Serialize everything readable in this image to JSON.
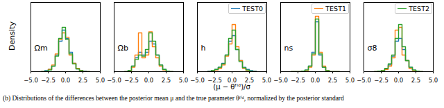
{
  "caption": "(b) Distributions of the differences between the posterior mean μ and the true parameter θᶠⁱᵈ, normalized by the posterior standard",
  "ylabel": "Density",
  "xlabel": "(μ − θᶠⁱᵈ)/σ",
  "legend": "upper right",
  "chart_data": [
    {
      "type": "histogram",
      "title": "Ωm",
      "xlim": [
        -5,
        5
      ],
      "xticks": [
        {
          "value": -5,
          "label": "−5.0"
        },
        {
          "value": -2.5,
          "label": "−2.5"
        },
        {
          "value": 0,
          "label": "0.0"
        },
        {
          "value": 2.5,
          "label": "2.5"
        },
        {
          "value": 5,
          "label": "5.0"
        }
      ],
      "ylim": [
        0,
        1.25
      ],
      "tick_labels": "x",
      "bins": [
        -3.5,
        -3,
        -2.5,
        -2,
        -1.5,
        -1,
        -0.5,
        0,
        0.5,
        1,
        1.5,
        2,
        2.5,
        3,
        3.5
      ],
      "series": [
        {
          "name": "TEST0",
          "color": "#1f77b4",
          "values": [
            0,
            0.02,
            0.04,
            0.1,
            0.3,
            0.55,
            0.75,
            0.6,
            0.35,
            0.15,
            0.05,
            0.02,
            0.01,
            0
          ]
        },
        {
          "name": "TEST1",
          "color": "#ff7f0e",
          "values": [
            0,
            0.01,
            0.04,
            0.12,
            0.32,
            0.58,
            0.7,
            0.62,
            0.3,
            0.15,
            0.06,
            0.02,
            0,
            0
          ]
        },
        {
          "name": "TEST2",
          "color": "#2ca02c",
          "values": [
            0,
            0.01,
            0.03,
            0.1,
            0.28,
            0.6,
            0.8,
            0.58,
            0.32,
            0.14,
            0.05,
            0.02,
            0,
            0
          ]
        }
      ]
    },
    {
      "type": "histogram",
      "title": "Ωb",
      "xlim": [
        -5,
        5
      ],
      "xticks": [
        {
          "value": -5,
          "label": "−5.0"
        },
        {
          "value": -2.5,
          "label": "−2.5"
        },
        {
          "value": 0,
          "label": "0.0"
        },
        {
          "value": 2.5,
          "label": "2.5"
        },
        {
          "value": 5,
          "label": "5.0"
        }
      ],
      "ylim": [
        0,
        1.25
      ],
      "tick_labels": "x",
      "bins": [
        -3.5,
        -3,
        -2.5,
        -2,
        -1.5,
        -1,
        -0.5,
        0,
        0.5,
        1,
        1.5,
        2,
        2.5,
        3,
        3.5
      ],
      "series": [
        {
          "name": "TEST0",
          "color": "#1f77b4",
          "values": [
            0,
            0.02,
            0.1,
            0.25,
            0.35,
            0.3,
            0.35,
            0.55,
            0.5,
            0.3,
            0.12,
            0.04,
            0.01,
            0
          ]
        },
        {
          "name": "TEST1",
          "color": "#ff7f0e",
          "values": [
            0,
            0.01,
            0.08,
            0.3,
            0.7,
            0.25,
            0.3,
            0.72,
            0.45,
            0.25,
            0.1,
            0.03,
            0,
            0
          ]
        },
        {
          "name": "TEST2",
          "color": "#2ca02c",
          "values": [
            0,
            0.02,
            0.1,
            0.22,
            0.3,
            0.28,
            0.4,
            0.7,
            0.55,
            0.3,
            0.12,
            0.04,
            0.01,
            0
          ]
        }
      ]
    },
    {
      "type": "histogram",
      "title": "h",
      "xlim": [
        -5,
        5
      ],
      "xticks": [
        {
          "value": -5,
          "label": "−5.0"
        },
        {
          "value": -2.5,
          "label": "−2.5"
        },
        {
          "value": 0,
          "label": "0.0"
        },
        {
          "value": 2.5,
          "label": "2.5"
        },
        {
          "value": 5,
          "label": "5.0"
        }
      ],
      "ylim": [
        0,
        1.25
      ],
      "tick_labels": "x",
      "bins": [
        -3.5,
        -3,
        -2.5,
        -2,
        -1.5,
        -1,
        -0.5,
        0,
        0.5,
        1,
        1.5,
        2,
        2.5,
        3,
        3.5
      ],
      "series": [
        {
          "name": "TEST0",
          "color": "#1f77b4",
          "values": [
            0.01,
            0.02,
            0.04,
            0.08,
            0.15,
            0.3,
            0.55,
            0.65,
            0.4,
            0.2,
            0.08,
            0.04,
            0.02,
            0.01
          ]
        },
        {
          "name": "TEST1",
          "color": "#ff7f0e",
          "values": [
            0,
            0.01,
            0.03,
            0.06,
            0.12,
            0.28,
            0.5,
            0.85,
            0.45,
            0.2,
            0.06,
            0.02,
            0.01,
            0
          ]
        },
        {
          "name": "TEST2",
          "color": "#2ca02c",
          "values": [
            0,
            0.02,
            0.04,
            0.08,
            0.14,
            0.3,
            0.6,
            0.75,
            0.4,
            0.18,
            0.07,
            0.03,
            0.01,
            0
          ]
        }
      ]
    },
    {
      "type": "histogram",
      "title": "ns",
      "xlim": [
        -5,
        5
      ],
      "xticks": [
        {
          "value": -5,
          "label": "−5.0"
        },
        {
          "value": -2.5,
          "label": "−2.5"
        },
        {
          "value": 0,
          "label": "0.0"
        },
        {
          "value": 2.5,
          "label": "2.5"
        },
        {
          "value": 5,
          "label": "5.0"
        }
      ],
      "ylim": [
        0,
        1.25
      ],
      "tick_labels": "x",
      "bins": [
        -3.5,
        -3,
        -2.5,
        -2,
        -1.5,
        -1,
        -0.5,
        0,
        0.5,
        1,
        1.5,
        2,
        2.5,
        3,
        3.5
      ],
      "series": [
        {
          "name": "TEST0",
          "color": "#1f77b4",
          "values": [
            0,
            0,
            0,
            0.01,
            0.03,
            0.1,
            0.35,
            0.9,
            0.3,
            0.08,
            0.02,
            0,
            0,
            0
          ]
        },
        {
          "name": "TEST1",
          "color": "#ff7f0e",
          "values": [
            0,
            0,
            0,
            0.01,
            0.02,
            0.08,
            0.3,
            1.0,
            0.35,
            0.1,
            0.02,
            0,
            0,
            0
          ]
        },
        {
          "name": "TEST2",
          "color": "#2ca02c",
          "values": [
            0,
            0,
            0,
            0.01,
            0.03,
            0.1,
            0.32,
            0.95,
            0.32,
            0.08,
            0.02,
            0,
            0,
            0
          ]
        }
      ]
    },
    {
      "type": "histogram",
      "title": "σ8",
      "xlim": [
        -5,
        5
      ],
      "xticks": [
        {
          "value": -5,
          "label": "−5.0"
        },
        {
          "value": -2.5,
          "label": "−2.5"
        },
        {
          "value": 0,
          "label": "0.0"
        },
        {
          "value": 2.5,
          "label": "2.5"
        },
        {
          "value": 5,
          "label": "5.0"
        }
      ],
      "ylim": [
        0,
        1.25
      ],
      "tick_labels": "x",
      "bins": [
        -3.5,
        -3,
        -2.5,
        -2,
        -1.5,
        -1,
        -0.5,
        0,
        0.5,
        1,
        1.5,
        2,
        2.5,
        3,
        3.5
      ],
      "series": [
        {
          "name": "TEST0",
          "color": "#1f77b4",
          "values": [
            0,
            0.01,
            0.02,
            0.05,
            0.12,
            0.28,
            0.55,
            0.6,
            0.4,
            0.2,
            0.08,
            0.03,
            0.01,
            0
          ]
        },
        {
          "name": "TEST1",
          "color": "#ff7f0e",
          "values": [
            0,
            0.01,
            0.02,
            0.04,
            0.1,
            0.25,
            0.75,
            0.8,
            0.3,
            0.2,
            0.06,
            0.02,
            0,
            0
          ]
        },
        {
          "name": "TEST2",
          "color": "#2ca02c",
          "values": [
            0,
            0.01,
            0.02,
            0.06,
            0.14,
            0.3,
            0.6,
            0.85,
            0.45,
            0.2,
            0.08,
            0.03,
            0.01,
            0
          ]
        }
      ]
    }
  ]
}
